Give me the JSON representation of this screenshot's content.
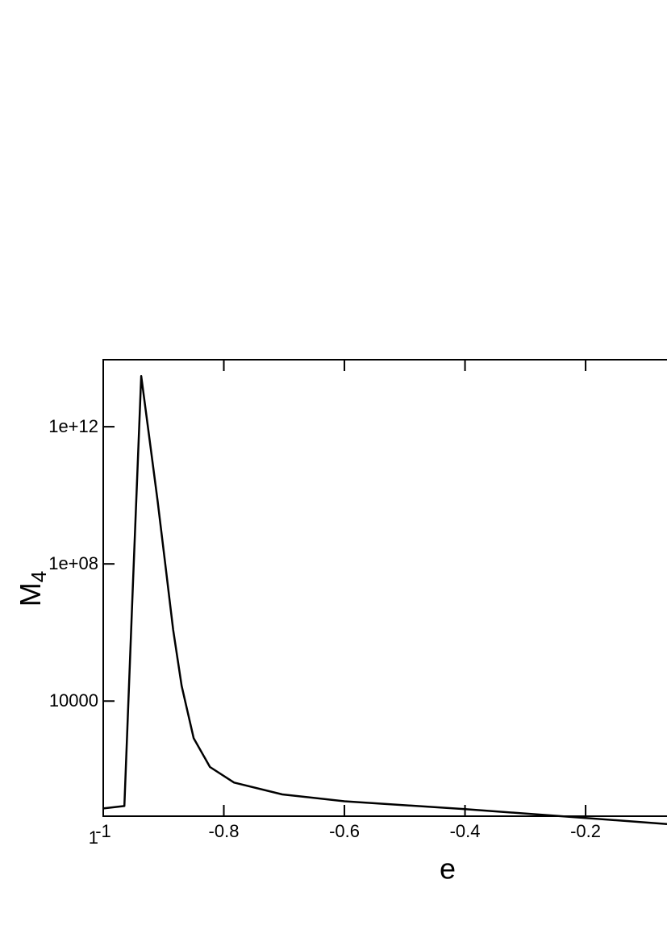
{
  "chart_data": {
    "type": "line",
    "x_label": "e",
    "y_label": "M",
    "y_label_sub": "4",
    "x": [
      -1,
      -0.965,
      -0.951,
      -0.937,
      -0.924,
      -0.91,
      -0.897,
      -0.884,
      -0.87,
      -0.85,
      -0.823,
      -0.783,
      -0.703,
      -0.6,
      -0.4,
      -0.2,
      -0.065
    ],
    "series": [
      {
        "color": "#000000",
        "values": [
          7.4,
          8.7,
          19000000,
          30000000000000,
          550000000000,
          7200000000,
          95000000,
          1200000,
          28000,
          830,
          120,
          42,
          19,
          12,
          7.1,
          3.9,
          2.6
        ]
      }
    ],
    "xlim": [
      -1,
      -0.065
    ],
    "xticks": [
      -1,
      -0.8,
      -0.6,
      -0.4,
      -0.2
    ],
    "ylim": [
      4.4,
      90000000000000
    ],
    "y_log": true,
    "yticks": [
      1,
      10000,
      {
        "value": 100000000,
        "label": "1e+08"
      },
      {
        "value": 1000000000000,
        "label": "1e+12"
      }
    ]
  }
}
